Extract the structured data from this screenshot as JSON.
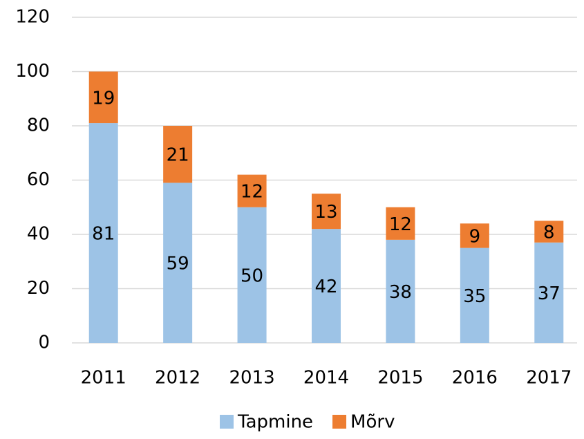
{
  "chart_data": {
    "type": "stacked_bar",
    "categories": [
      "2011",
      "2012",
      "2013",
      "2014",
      "2015",
      "2016",
      "2017"
    ],
    "series": [
      {
        "name": "Tapmine",
        "color": "#9dc3e6",
        "values": [
          81,
          59,
          50,
          42,
          38,
          35,
          37
        ]
      },
      {
        "name": "Mõrv",
        "color": "#ed7d31",
        "values": [
          19,
          21,
          12,
          13,
          12,
          9,
          8
        ]
      }
    ],
    "ylim": [
      0,
      120
    ],
    "yticks": [
      0,
      20,
      40,
      60,
      80,
      100,
      120
    ],
    "grid": true,
    "legend": "bottom"
  }
}
